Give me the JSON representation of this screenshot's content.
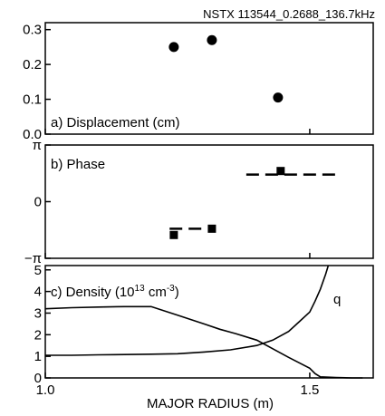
{
  "header": {
    "shot_label": "NSTX 113544_0.2688_136.7kHz"
  },
  "xaxis": {
    "label": "MAJOR RADIUS (m)",
    "range": [
      1.0,
      1.62
    ],
    "ticks": [
      {
        "value": 1.0,
        "label": "1.0"
      },
      {
        "value": 1.5,
        "label": "1.5"
      }
    ]
  },
  "chart_data": [
    {
      "type": "scatter",
      "panel_label": "a) Displacement (cm)",
      "ylim": [
        0.0,
        0.32
      ],
      "yticks": [
        {
          "value": 0.0,
          "label": "0.0"
        },
        {
          "value": 0.1,
          "label": "0.1"
        },
        {
          "value": 0.2,
          "label": "0.2"
        },
        {
          "value": 0.3,
          "label": "0.3"
        }
      ],
      "points": [
        {
          "x": 1.243,
          "y": 0.25
        },
        {
          "x": 1.315,
          "y": 0.27
        },
        {
          "x": 1.44,
          "y": 0.105
        }
      ]
    },
    {
      "type": "scatter",
      "panel_label": "b) Phase",
      "ylim": [
        -3.14159,
        3.14159
      ],
      "yticks": [
        {
          "value": 3.14159,
          "label": "π"
        },
        {
          "value": 0,
          "label": "0"
        },
        {
          "value": -3.14159,
          "label": "−π"
        }
      ],
      "points": [
        {
          "x": 1.243,
          "y": -1.85
        },
        {
          "x": 1.315,
          "y": -1.5
        },
        {
          "x": 1.445,
          "y": 1.7
        }
      ],
      "dashed_segments": [
        {
          "x": [
            1.235,
            1.305
          ],
          "y": -1.5
        },
        {
          "x": [
            1.38,
            1.555
          ],
          "y": 1.5
        }
      ]
    },
    {
      "type": "line",
      "panel_label": "c) Density (10",
      "panel_label_sup": "13",
      "panel_label_mid": " cm",
      "panel_label_sup2": "-3",
      "panel_label_end": ")",
      "ylim": [
        0,
        5.2
      ],
      "yticks": [
        {
          "value": 0,
          "label": "0"
        },
        {
          "value": 1,
          "label": "1"
        },
        {
          "value": 2,
          "label": "2"
        },
        {
          "value": 3,
          "label": "3"
        },
        {
          "value": 4,
          "label": "4"
        },
        {
          "value": 5,
          "label": "5"
        }
      ],
      "series": [
        {
          "x": [
            1.0,
            1.05,
            1.1,
            1.15,
            1.2,
            1.25,
            1.3,
            1.33,
            1.36,
            1.4,
            1.43,
            1.46,
            1.48,
            1.5,
            1.51,
            1.52,
            1.55,
            1.58,
            1.6
          ],
          "values": [
            3.2,
            3.25,
            3.28,
            3.3,
            3.3,
            2.9,
            2.5,
            2.25,
            2.05,
            1.75,
            1.35,
            0.95,
            0.7,
            0.45,
            0.2,
            0.05,
            0.02,
            0.0,
            0.0
          ]
        },
        {
          "name": "q",
          "x": [
            1.0,
            1.05,
            1.1,
            1.15,
            1.2,
            1.25,
            1.3,
            1.35,
            1.4,
            1.43,
            1.46,
            1.48,
            1.5,
            1.51,
            1.52,
            1.53,
            1.535
          ],
          "values": [
            1.05,
            1.05,
            1.07,
            1.08,
            1.1,
            1.12,
            1.2,
            1.3,
            1.5,
            1.75,
            2.15,
            2.6,
            3.05,
            3.55,
            4.1,
            4.8,
            5.2
          ]
        }
      ]
    }
  ]
}
